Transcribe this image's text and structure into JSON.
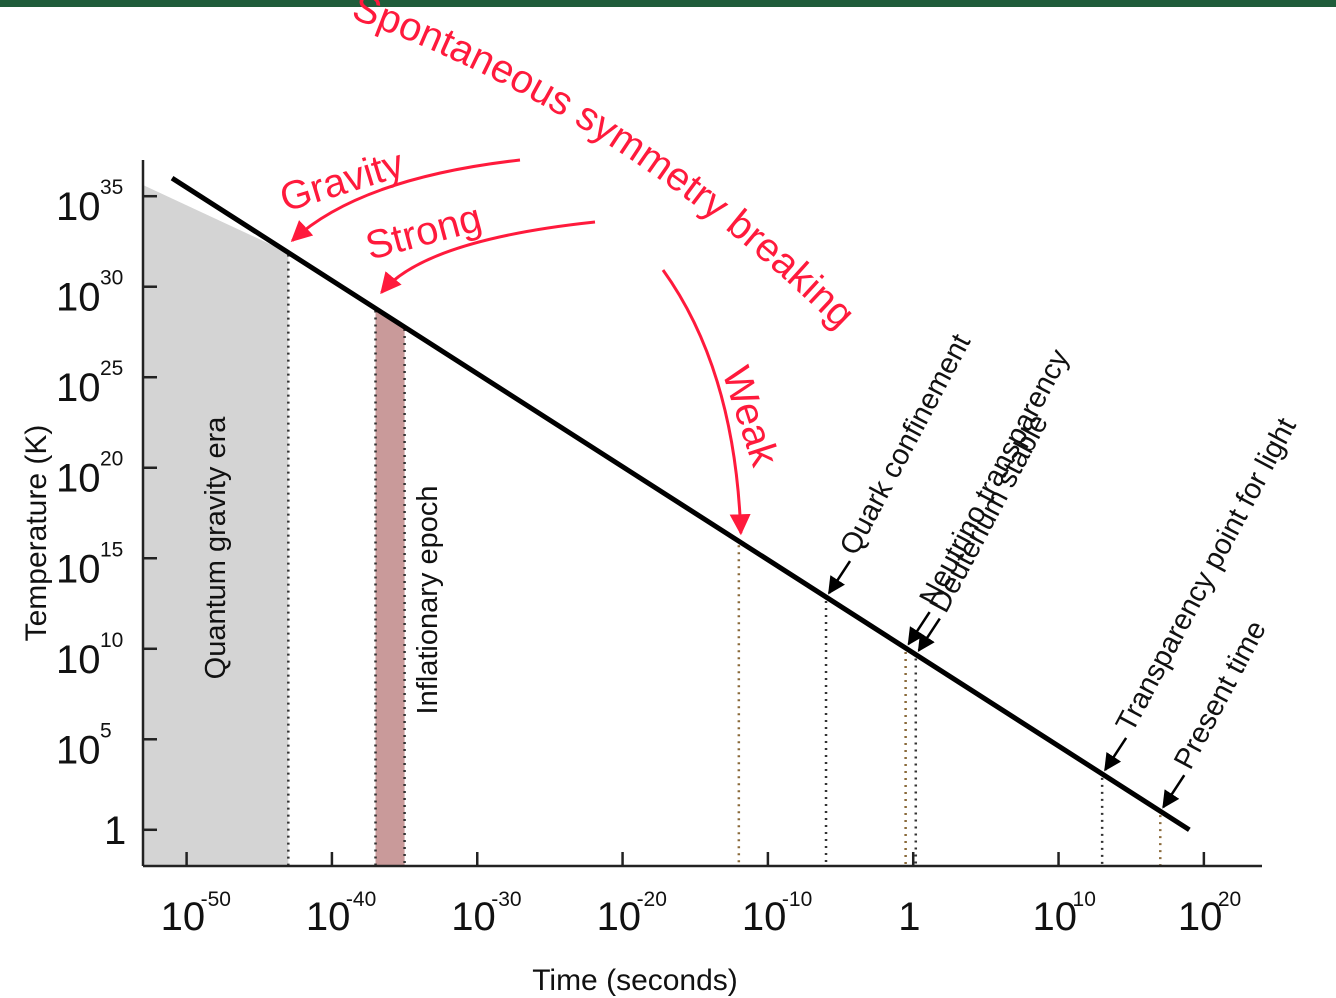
{
  "colors": {
    "top_rule": "#1f5c3a",
    "line": "#000000",
    "red": "#ff1a3c",
    "quantum_fill": "#d4d4d4",
    "inflation_fill": "#c99a9a",
    "dotted": "#333333",
    "dotted_brown": "#8a6a3a"
  },
  "chart_data": {
    "type": "line",
    "xlabel": "Time (seconds)",
    "ylabel": "Temperature (K)",
    "x_scale": "log",
    "y_scale": "log",
    "xlim": [
      1e-53,
      1e+24
    ],
    "ylim": [
      0.01,
      1e+37
    ],
    "x_ticks": [
      {
        "value": 1e-50,
        "base": "10",
        "exp": "-50"
      },
      {
        "value": 1e-40,
        "base": "10",
        "exp": "-40"
      },
      {
        "value": 1e-30,
        "base": "10",
        "exp": "-30"
      },
      {
        "value": 1e-20,
        "base": "10",
        "exp": "-20"
      },
      {
        "value": 1e-10,
        "base": "10",
        "exp": "-10"
      },
      {
        "value": 1,
        "base": "1",
        "exp": ""
      },
      {
        "value": 10000000000.0,
        "base": "10",
        "exp": "10"
      },
      {
        "value": 1e+20,
        "base": "10",
        "exp": "20"
      }
    ],
    "y_ticks": [
      {
        "value": 1e+35,
        "base": "10",
        "exp": "35"
      },
      {
        "value": 1e+30,
        "base": "10",
        "exp": "30"
      },
      {
        "value": 1e+25,
        "base": "10",
        "exp": "25"
      },
      {
        "value": 1e+20,
        "base": "10",
        "exp": "20"
      },
      {
        "value": 1000000000000000.0,
        "base": "10",
        "exp": "15"
      },
      {
        "value": 10000000000.0,
        "base": "10",
        "exp": "10"
      },
      {
        "value": 100000.0,
        "base": "10",
        "exp": "5"
      },
      {
        "value": 1,
        "base": "1",
        "exp": ""
      }
    ],
    "series": [
      {
        "points": [
          {
            "x": 1e-51,
            "y": 1e+36
          },
          {
            "x": 1e+19,
            "y": 1.0
          }
        ]
      }
    ],
    "regions": [
      {
        "label": "Quantum gravity era",
        "x_start": 1e-53,
        "x_end": 1e-43,
        "color": "#d4d4d4"
      },
      {
        "label": "Inflationary epoch",
        "x_start": 1e-37,
        "x_end": 1e-35,
        "color": "#c99a9a"
      }
    ],
    "events": [
      {
        "label": "Quark confinement",
        "x": 1e-06
      },
      {
        "label": "Neutrino transparency",
        "x": 0.3
      },
      {
        "label": "Deuterium stable",
        "x": 1.5
      },
      {
        "label": "Transparency point for light",
        "x": 10000000000000.0
      },
      {
        "label": "Present time",
        "x": 1e+17
      }
    ],
    "symmetry_breaking": {
      "title": "Spontaneous symmetry breaking",
      "forces": [
        {
          "label": "Gravity",
          "x": 1e-43
        },
        {
          "label": "Strong",
          "x": 1e-37
        },
        {
          "label": "Weak",
          "x": 1e-12
        }
      ]
    }
  }
}
